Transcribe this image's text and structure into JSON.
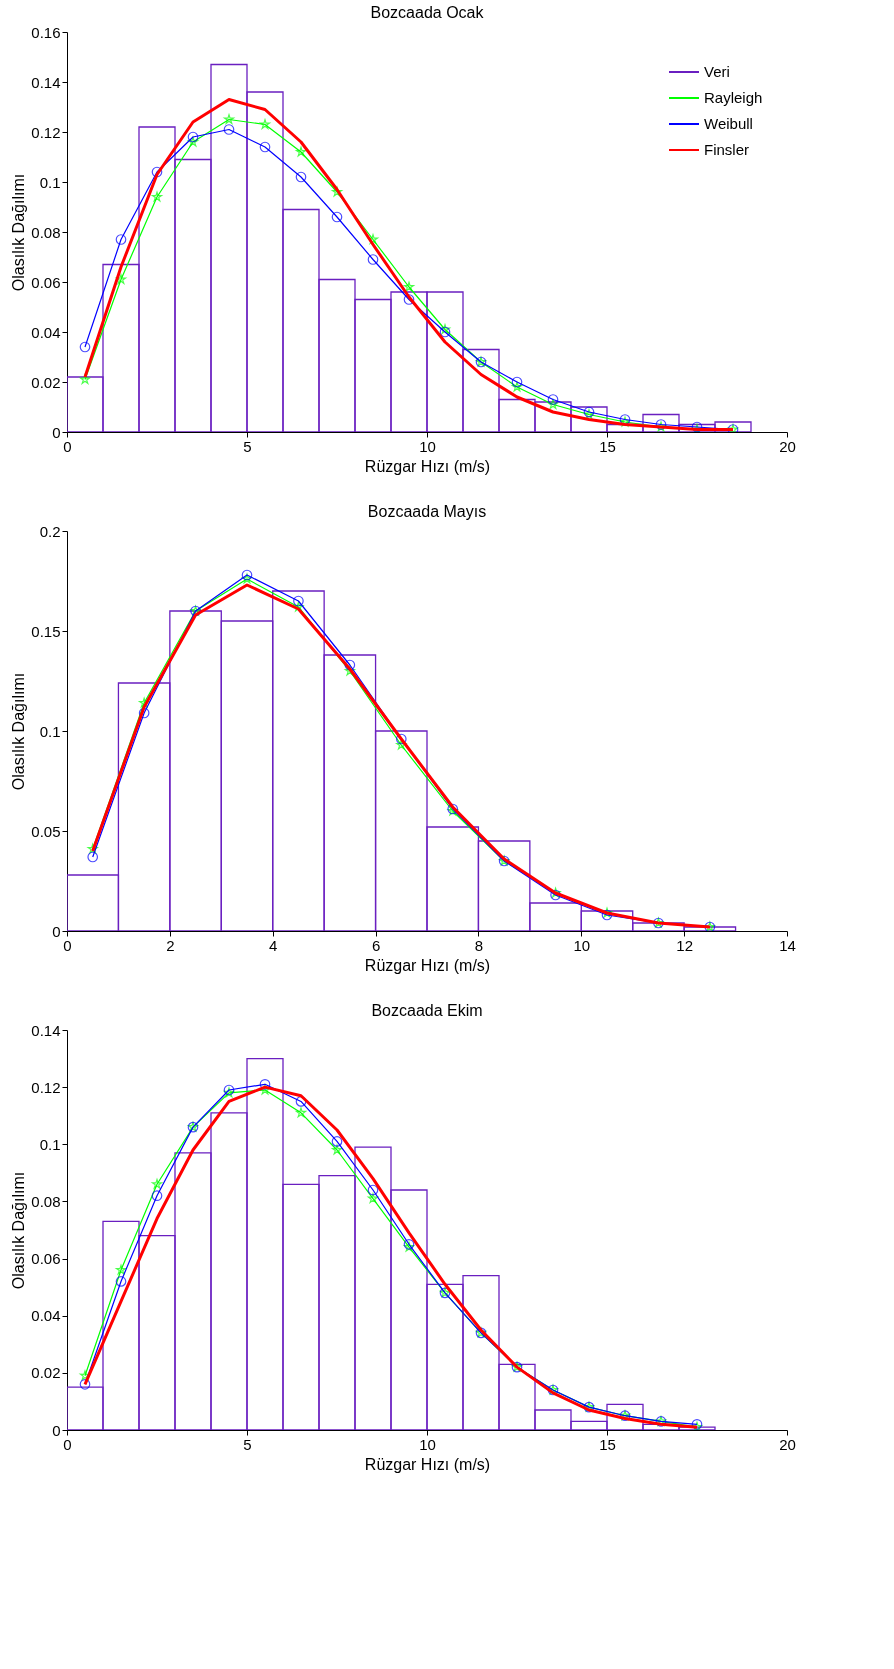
{
  "chart_data": [
    {
      "type": "histogram",
      "title": "Bozcaada Ocak",
      "xlabel": "Rüzgar Hızı (m/s)",
      "ylabel": "Olasılık Dağılımı",
      "xlim": [
        0,
        20
      ],
      "xticks": [
        0,
        5,
        10,
        15,
        20
      ],
      "ylim": [
        0,
        0.16
      ],
      "yticks": [
        0,
        0.02,
        0.04,
        0.06,
        0.08,
        0.1,
        0.12,
        0.14,
        0.16
      ],
      "grid": false,
      "legend": "top right",
      "bins": [
        0,
        1,
        2,
        3,
        4,
        5,
        6,
        7,
        8,
        9,
        10,
        11,
        12,
        13,
        14,
        15,
        16,
        17,
        18,
        19
      ],
      "series": [
        {
          "name": "Veri",
          "color": "#6a1fc0",
          "values": [
            0.022,
            0.067,
            0.122,
            0.109,
            0.147,
            0.136,
            0.089,
            0.061,
            0.053,
            0.056,
            0.056,
            0.033,
            0.013,
            0.012,
            0.01,
            0.003,
            0.007,
            0.003,
            0.004
          ]
        },
        {
          "name": "Rayleigh",
          "type": "line",
          "color": "#00ff00",
          "marker": "star",
          "x": [
            0.5,
            1.5,
            2.5,
            3.5,
            4.5,
            5.5,
            6.5,
            7.5,
            8.5,
            9.5,
            10.5,
            11.5,
            12.5,
            13.5,
            14.5,
            15.5,
            16.5,
            17.5,
            18.5
          ],
          "values": [
            0.021,
            0.061,
            0.094,
            0.116,
            0.125,
            0.123,
            0.112,
            0.096,
            0.077,
            0.058,
            0.041,
            0.028,
            0.018,
            0.011,
            0.007,
            0.004,
            0.002,
            0.001,
            0.001
          ]
        },
        {
          "name": "Weibull",
          "type": "line",
          "color": "#0000ff",
          "marker": "circle",
          "x": [
            0.5,
            1.5,
            2.5,
            3.5,
            4.5,
            5.5,
            6.5,
            7.5,
            8.5,
            9.5,
            10.5,
            11.5,
            12.5,
            13.5,
            14.5,
            15.5,
            16.5,
            17.5,
            18.5
          ],
          "values": [
            0.034,
            0.077,
            0.104,
            0.118,
            0.121,
            0.114,
            0.102,
            0.086,
            0.069,
            0.053,
            0.04,
            0.028,
            0.02,
            0.013,
            0.008,
            0.005,
            0.003,
            0.002,
            0.001
          ]
        },
        {
          "name": "Finsler",
          "type": "line",
          "color": "#ff0000",
          "marker": "none",
          "x": [
            0.5,
            1.5,
            2.5,
            3.5,
            4.5,
            5.5,
            6.5,
            7.5,
            8.5,
            9.5,
            10.5,
            11.5,
            12.5,
            13.5,
            14.5,
            15.5,
            16.5,
            17.5,
            18.5
          ],
          "values": [
            0.022,
            0.066,
            0.103,
            0.124,
            0.133,
            0.129,
            0.116,
            0.097,
            0.075,
            0.054,
            0.036,
            0.023,
            0.014,
            0.008,
            0.005,
            0.003,
            0.002,
            0.001,
            0.001
          ]
        }
      ]
    },
    {
      "type": "histogram",
      "title": "Bozcaada Mayıs",
      "xlabel": "Rüzgar Hızı (m/s)",
      "ylabel": "Olasılık Dağılımı",
      "xlim": [
        0,
        14
      ],
      "xticks": [
        0,
        2,
        4,
        6,
        8,
        10,
        12,
        14
      ],
      "ylim": [
        0,
        0.2
      ],
      "yticks": [
        0,
        0.05,
        0.1,
        0.15,
        0.2
      ],
      "grid": false,
      "legend": "top right",
      "bins": [
        0,
        1,
        2,
        3,
        4,
        5,
        6,
        7,
        8,
        9,
        10,
        11,
        12,
        13
      ],
      "series": [
        {
          "name": "Veri",
          "color": "#6a1fc0",
          "values": [
            0.028,
            0.124,
            0.16,
            0.155,
            0.17,
            0.138,
            0.1,
            0.052,
            0.045,
            0.014,
            0.01,
            0.004,
            0.002
          ]
        },
        {
          "name": "Rayleigh",
          "type": "line",
          "color": "#00ff00",
          "marker": "star",
          "x": [
            0.5,
            1.5,
            2.5,
            3.5,
            4.5,
            5.5,
            6.5,
            7.5,
            8.5,
            9.5,
            10.5,
            11.5,
            12.5
          ],
          "values": [
            0.041,
            0.114,
            0.16,
            0.176,
            0.162,
            0.13,
            0.093,
            0.06,
            0.035,
            0.019,
            0.009,
            0.004,
            0.002
          ]
        },
        {
          "name": "Weibull",
          "type": "line",
          "color": "#0000ff",
          "marker": "circle",
          "x": [
            0.5,
            1.5,
            2.5,
            3.5,
            4.5,
            5.5,
            6.5,
            7.5,
            8.5,
            9.5,
            10.5,
            11.5,
            12.5
          ],
          "values": [
            0.037,
            0.109,
            0.16,
            0.178,
            0.165,
            0.133,
            0.096,
            0.061,
            0.035,
            0.018,
            0.008,
            0.004,
            0.002
          ]
        },
        {
          "name": "Finsler",
          "type": "line",
          "color": "#ff0000",
          "marker": "none",
          "x": [
            0.5,
            1.5,
            2.5,
            3.5,
            4.5,
            5.5,
            6.5,
            7.5,
            8.5,
            9.5,
            10.5,
            11.5,
            12.5
          ],
          "values": [
            0.04,
            0.112,
            0.158,
            0.173,
            0.161,
            0.131,
            0.096,
            0.062,
            0.036,
            0.019,
            0.009,
            0.004,
            0.002
          ]
        }
      ]
    },
    {
      "type": "histogram",
      "title": "Bozcaada Ekim",
      "xlabel": "Rüzgar Hızı (m/s)",
      "ylabel": "Olasılık Dağılımı",
      "xlim": [
        0,
        20
      ],
      "xticks": [
        0,
        5,
        10,
        15,
        20
      ],
      "ylim": [
        0,
        0.14
      ],
      "yticks": [
        0,
        0.02,
        0.04,
        0.06,
        0.08,
        0.1,
        0.12,
        0.14
      ],
      "grid": false,
      "legend": "top right",
      "bins": [
        0,
        1,
        2,
        3,
        4,
        5,
        6,
        7,
        8,
        9,
        10,
        11,
        12,
        13,
        14,
        15,
        16,
        17,
        18
      ],
      "series": [
        {
          "name": "Veri",
          "color": "#6a1fc0",
          "values": [
            0.015,
            0.073,
            0.068,
            0.097,
            0.111,
            0.13,
            0.086,
            0.089,
            0.099,
            0.084,
            0.051,
            0.054,
            0.023,
            0.007,
            0.003,
            0.009,
            0.002,
            0.001
          ]
        },
        {
          "name": "Rayleigh",
          "type": "line",
          "color": "#00ff00",
          "marker": "star",
          "x": [
            0.5,
            1.5,
            2.5,
            3.5,
            4.5,
            5.5,
            6.5,
            7.5,
            8.5,
            9.5,
            10.5,
            11.5,
            12.5,
            13.5,
            14.5,
            15.5,
            16.5,
            17.5
          ],
          "values": [
            0.019,
            0.056,
            0.086,
            0.106,
            0.118,
            0.119,
            0.111,
            0.098,
            0.081,
            0.064,
            0.048,
            0.034,
            0.022,
            0.014,
            0.008,
            0.005,
            0.003,
            0.001
          ]
        },
        {
          "name": "Weibull",
          "type": "line",
          "color": "#0000ff",
          "marker": "circle",
          "x": [
            0.5,
            1.5,
            2.5,
            3.5,
            4.5,
            5.5,
            6.5,
            7.5,
            8.5,
            9.5,
            10.5,
            11.5,
            12.5,
            13.5,
            14.5,
            15.5,
            16.5,
            17.5
          ],
          "values": [
            0.016,
            0.052,
            0.082,
            0.106,
            0.119,
            0.121,
            0.115,
            0.101,
            0.084,
            0.065,
            0.048,
            0.034,
            0.022,
            0.014,
            0.008,
            0.005,
            0.003,
            0.002
          ]
        },
        {
          "name": "Finsler",
          "type": "line",
          "color": "#ff0000",
          "marker": "none",
          "x": [
            0.5,
            1.5,
            2.5,
            3.5,
            4.5,
            5.5,
            6.5,
            7.5,
            8.5,
            9.5,
            10.5,
            11.5,
            12.5,
            13.5,
            14.5,
            15.5,
            16.5,
            17.5
          ],
          "values": [
            0.016,
            0.045,
            0.074,
            0.098,
            0.115,
            0.12,
            0.117,
            0.105,
            0.088,
            0.069,
            0.051,
            0.035,
            0.022,
            0.013,
            0.007,
            0.004,
            0.002,
            0.001
          ]
        }
      ]
    }
  ]
}
